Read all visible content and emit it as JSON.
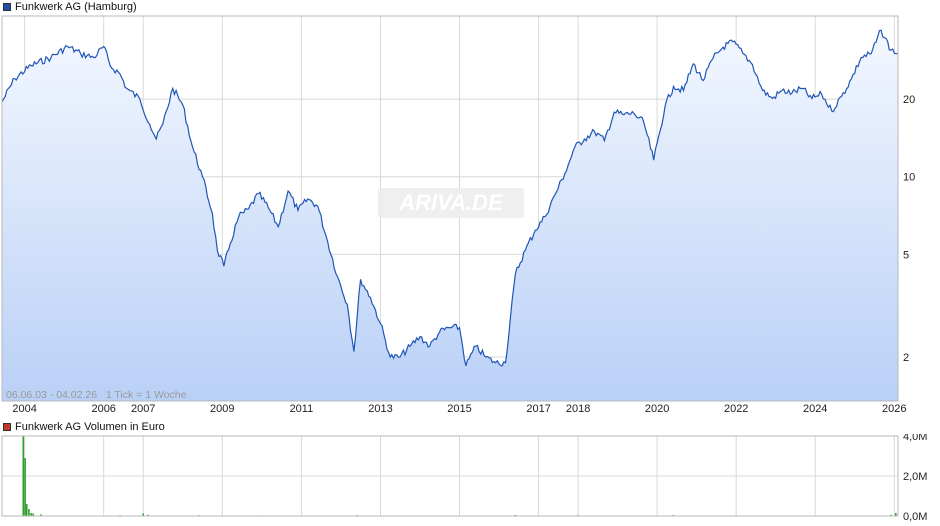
{
  "price_legend": {
    "label": "Funkwerk AG (Hamburg)",
    "color": "#1f4fa8"
  },
  "volume_legend": {
    "label": "Funkwerk AG Volumen in Euro",
    "color": "#c0392b"
  },
  "info_text": "06.06.03 - 04.02.26   1 Tick = 1 Woche",
  "watermark": "ARIVA.DE",
  "colors": {
    "line": "#1f56b5",
    "fill_top": "#f3f7ff",
    "fill_bottom": "#b9d0f6",
    "grid": "#d8d8d8",
    "volume_bar": "#2e9e2e",
    "volume_spike": "#2e9e2e"
  },
  "chart_data": [
    {
      "type": "area",
      "title": "Funkwerk AG (Hamburg)",
      "y_scale": "log",
      "ylim": [
        1.35,
        42
      ],
      "y_ticks": [
        2,
        5,
        10,
        20
      ],
      "y_tick_labels": [
        "2",
        "5",
        "10",
        "20"
      ],
      "xlim": [
        "2003-06-06",
        "2026-02-04"
      ],
      "x_ticks": [
        "2004-01-01",
        "2006-01-01",
        "2007-01-01",
        "2009-01-01",
        "2011-01-01",
        "2013-01-01",
        "2015-01-01",
        "2017-01-01",
        "2018-01-01",
        "2020-01-01",
        "2022-01-01",
        "2024-01-01",
        "2026-01-01"
      ],
      "x_tick_labels": [
        "2004",
        "2006",
        "2007",
        "2009",
        "2011",
        "2013",
        "2015",
        "2017",
        "2018",
        "2020",
        "2022",
        "2024",
        "2026"
      ],
      "grid": true,
      "x": [
        "2003-06-06",
        "2003-10-01",
        "2004-03-01",
        "2004-09-01",
        "2005-02-01",
        "2005-06-01",
        "2005-10-01",
        "2006-01-01",
        "2006-03-01",
        "2006-06-01",
        "2006-08-01",
        "2006-12-01",
        "2007-03-01",
        "2007-05-01",
        "2007-07-01",
        "2007-10-01",
        "2008-01-01",
        "2008-04-01",
        "2008-07-01",
        "2008-10-01",
        "2008-11-15",
        "2009-01-15",
        "2009-03-15",
        "2009-06-01",
        "2009-09-01",
        "2009-12-01",
        "2010-03-01",
        "2010-06-01",
        "2010-09-01",
        "2010-12-01",
        "2011-03-01",
        "2011-06-01",
        "2011-09-01",
        "2011-12-01",
        "2012-03-01",
        "2012-05-01",
        "2012-07-01",
        "2012-10-01",
        "2013-01-01",
        "2013-04-01",
        "2013-07-01",
        "2013-10-01",
        "2014-01-01",
        "2014-04-01",
        "2014-07-01",
        "2014-10-01",
        "2015-01-01",
        "2015-03-01",
        "2015-06-01",
        "2015-09-01",
        "2015-12-01",
        "2016-03-01",
        "2016-06-01",
        "2016-09-01",
        "2016-12-01",
        "2017-03-01",
        "2017-06-01",
        "2017-09-01",
        "2017-12-01",
        "2018-03-01",
        "2018-06-01",
        "2018-09-01",
        "2018-12-01",
        "2019-03-01",
        "2019-06-01",
        "2019-09-01",
        "2019-12-01",
        "2020-03-15",
        "2020-06-01",
        "2020-09-01",
        "2020-12-01",
        "2021-03-01",
        "2021-06-01",
        "2021-09-01",
        "2021-12-01",
        "2022-03-01",
        "2022-06-01",
        "2022-09-01",
        "2022-12-01",
        "2023-03-01",
        "2023-06-01",
        "2023-09-01",
        "2023-12-01",
        "2024-03-01",
        "2024-06-01",
        "2024-09-01",
        "2024-12-01",
        "2025-03-01",
        "2025-06-01",
        "2025-09-01",
        "2025-12-01",
        "2026-02-04"
      ],
      "series": [
        {
          "name": "Funkwerk AG (Hamburg)",
          "values": [
            19.5,
            24,
            27,
            29,
            32,
            30,
            29,
            32,
            27,
            25,
            22,
            20,
            16,
            14,
            16,
            22,
            19,
            13,
            10,
            7.2,
            5.2,
            4.5,
            5.5,
            7.0,
            7.5,
            8.6,
            7.6,
            6.4,
            8.8,
            7.4,
            8.2,
            7.7,
            5.6,
            4.1,
            3.2,
            2.1,
            4.0,
            3.4,
            2.7,
            2.0,
            2.0,
            2.2,
            2.4,
            2.2,
            2.5,
            2.6,
            2.6,
            1.85,
            2.2,
            2.0,
            1.9,
            1.9,
            4.2,
            5.2,
            6.2,
            7.0,
            8.5,
            10.3,
            13.0,
            14.0,
            15.0,
            13.8,
            17.8,
            17.4,
            17.6,
            16.2,
            11.6,
            18.8,
            22.4,
            21.6,
            27.4,
            23.6,
            28.8,
            31.8,
            33.4,
            30.2,
            27.2,
            21.6,
            20.1,
            21.6,
            21.1,
            22.0,
            20.1,
            20.9,
            18.0,
            20.5,
            24.0,
            29.0,
            30.0,
            37.0,
            31.0,
            30.0
          ]
        }
      ]
    },
    {
      "type": "bar",
      "title": "Funkwerk AG Volumen in Euro",
      "ylim": [
        0,
        4000000
      ],
      "y_ticks": [
        0,
        2000000,
        4000000
      ],
      "y_tick_labels": [
        "0,0M",
        "2,0M",
        "4,0M"
      ],
      "xlim": [
        "2003-06-06",
        "2026-02-04"
      ],
      "grid": true,
      "x": [
        "2003-12-20",
        "2004-01-05",
        "2004-01-20",
        "2004-02-10",
        "2004-03-01",
        "2004-03-20",
        "2004-06-01",
        "2006-06-01",
        "2007-01-01",
        "2007-02-15",
        "2008-06-01",
        "2010-01-01",
        "2012-06-01",
        "2016-06-01",
        "2018-01-01",
        "2020-06-01",
        "2022-01-01",
        "2025-12-01",
        "2026-01-15"
      ],
      "series": [
        {
          "name": "Funkwerk AG Volumen in Euro",
          "values": [
            4000000,
            2900000,
            600000,
            350000,
            150000,
            120000,
            80000,
            40000,
            120000,
            60000,
            40000,
            30000,
            40000,
            50000,
            40000,
            45000,
            35000,
            60000,
            150000
          ]
        }
      ]
    }
  ]
}
